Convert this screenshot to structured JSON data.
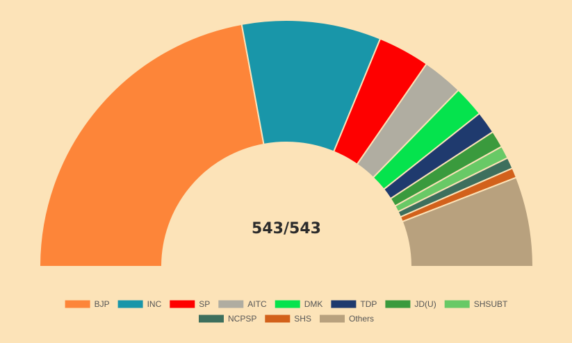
{
  "chart_data": {
    "type": "pie",
    "variant": "half-doughnut",
    "center_label": "543/543",
    "categories": [
      "BJP",
      "INC",
      "SP",
      "AITC",
      "DMK",
      "TDP",
      "JD(U)",
      "SHSUBT",
      "NCPSP",
      "SHS",
      "Others"
    ],
    "values": [
      240,
      99,
      37,
      29,
      22,
      16,
      12,
      9,
      8,
      7,
      64
    ],
    "colors": [
      "#fd8539",
      "#1996a9",
      "#fe0000",
      "#b0ada1",
      "#05e34d",
      "#1f3a6e",
      "#3a9a3d",
      "#68c966",
      "#3d6f5d",
      "#d2611b",
      "#b8a17e"
    ],
    "legend_position": "bottom",
    "total": 543
  }
}
